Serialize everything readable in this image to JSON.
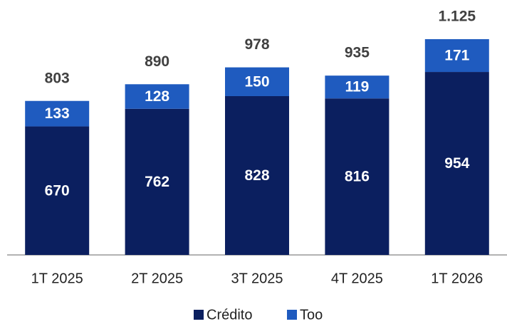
{
  "chart_data": {
    "type": "stacked_bar",
    "categories": [
      "1T 2025",
      "2T 2025",
      "3T 2025",
      "4T 2025",
      "1T 2026"
    ],
    "series": [
      {
        "name": "Crédito",
        "color": "#0b1f5f",
        "values": [
          670,
          762,
          828,
          816,
          954
        ]
      },
      {
        "name": "Too",
        "color": "#1f5bbf",
        "values": [
          133,
          128,
          150,
          119,
          171
        ]
      }
    ],
    "totals": {
      "values": [
        803,
        890,
        978,
        935,
        1125
      ],
      "value_labels": [
        "803",
        "890",
        "978",
        "935",
        "1.125"
      ]
    },
    "legend": "bottom"
  }
}
